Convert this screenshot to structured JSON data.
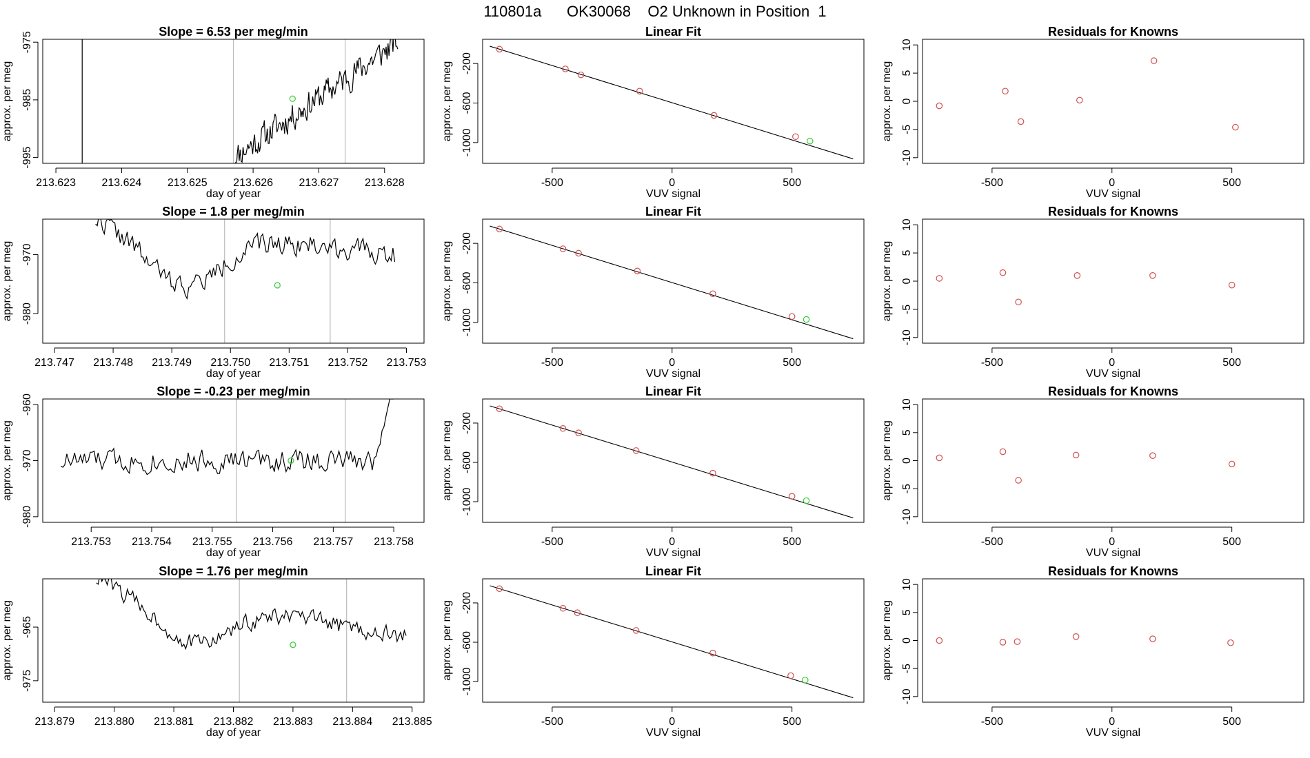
{
  "figure_title": "110801a      OK30068    O2 Unknown in Position  1",
  "colors": {
    "line": "#000000",
    "known_point": "#d05050",
    "unknown_point": "#33cc33",
    "marker_line": "#bbbbbb",
    "fit_line": "#000000"
  },
  "chart_data": [
    {
      "panel": "row1-timeseries",
      "type": "line",
      "title": "Slope =  6.53  per meg/min",
      "xlabel": "day of year",
      "ylabel": "approx. per meg",
      "xlim": [
        213.6228,
        213.6286
      ],
      "ylim": [
        -996,
        -974.5
      ],
      "xticks": [
        "213.623",
        "213.624",
        "213.625",
        "213.626",
        "213.627",
        "213.628"
      ],
      "yticks": [
        "-975",
        "-985",
        "-995"
      ],
      "vlines_gray": [
        213.6257,
        213.6274
      ],
      "vline_black": 213.6234,
      "trace_start": 213.6257,
      "trace_end": 213.6282,
      "trace_y_start": -995,
      "trace_y_end": -975,
      "noise": 3.0,
      "seed": 11,
      "marker": {
        "x": 213.6266,
        "y": -984.8
      }
    },
    {
      "panel": "row1-fit",
      "type": "scatter",
      "title": "Linear Fit",
      "xlabel": "VUV signal",
      "ylabel": "approx. per meg",
      "xlim": [
        -790,
        800
      ],
      "ylim": [
        -1210,
        45
      ],
      "xticks": [
        "-500",
        "0",
        "500"
      ],
      "yticks": [
        "-200",
        "-600",
        "-1000"
      ],
      "fit_line": {
        "x1": -760,
        "y1": -25,
        "x2": 755,
        "y2": -1165
      },
      "known": [
        [
          -720,
          -55
        ],
        [
          -445,
          -255
        ],
        [
          -380,
          -315
        ],
        [
          -135,
          -480
        ],
        [
          175,
          -725
        ],
        [
          515,
          -940
        ]
      ],
      "unknown": [
        [
          575,
          -985
        ]
      ]
    },
    {
      "panel": "row1-residuals",
      "type": "scatter",
      "title": "Residuals for Knowns",
      "xlabel": "VUV signal",
      "ylabel": "approx. per meg",
      "xlim": [
        -790,
        800
      ],
      "ylim": [
        -11,
        11
      ],
      "xticks": [
        "-500",
        "0",
        "500"
      ],
      "yticks": [
        "10",
        "5",
        "0",
        "-5",
        "-10"
      ],
      "points": [
        [
          -720,
          -0.8
        ],
        [
          -445,
          1.8
        ],
        [
          -380,
          -3.6
        ],
        [
          -135,
          0.2
        ],
        [
          175,
          7.2
        ],
        [
          515,
          -4.6
        ]
      ]
    },
    {
      "panel": "row2-timeseries",
      "type": "line",
      "title": "Slope =  1.8  per meg/min",
      "xlabel": "day of year",
      "ylabel": "approx. per meg",
      "xlim": [
        213.7468,
        213.7533
      ],
      "ylim": [
        -985,
        -964
      ],
      "xticks": [
        "213.747",
        "213.748",
        "213.749",
        "213.750",
        "213.751",
        "213.752",
        "213.753"
      ],
      "yticks": [
        "-970",
        "-980"
      ],
      "vlines_gray": [
        213.7499,
        213.7517
      ],
      "vline_black": null,
      "trace_start": 213.7477,
      "trace_end": 213.7528,
      "trace_y_start": -964,
      "trace_y_end": -970,
      "dip": {
        "center": 213.7492,
        "width": 0.0009,
        "depth": -9.5
      },
      "noise": 2.2,
      "seed": 22,
      "marker": {
        "x": 213.7508,
        "y": -975.2
      }
    },
    {
      "panel": "row2-fit",
      "type": "scatter",
      "title": "Linear Fit",
      "xlabel": "VUV signal",
      "ylabel": "approx. per meg",
      "xlim": [
        -790,
        800
      ],
      "ylim": [
        -1210,
        45
      ],
      "xticks": [
        "-500",
        "0",
        "500"
      ],
      "yticks": [
        "-200",
        "-600",
        "-1000"
      ],
      "fit_line": {
        "x1": -760,
        "y1": -25,
        "x2": 755,
        "y2": -1165
      },
      "known": [
        [
          -720,
          -55
        ],
        [
          -455,
          -255
        ],
        [
          -390,
          -300
        ],
        [
          -145,
          -480
        ],
        [
          170,
          -710
        ],
        [
          500,
          -940
        ]
      ],
      "unknown": [
        [
          560,
          -970
        ]
      ]
    },
    {
      "panel": "row2-residuals",
      "type": "scatter",
      "title": "Residuals for Knowns",
      "xlabel": "VUV signal",
      "ylabel": "approx. per meg",
      "xlim": [
        -790,
        800
      ],
      "ylim": [
        -11,
        11
      ],
      "xticks": [
        "-500",
        "0",
        "500"
      ],
      "yticks": [
        "10",
        "5",
        "0",
        "-5",
        "-10"
      ],
      "points": [
        [
          -720,
          0.5
        ],
        [
          -455,
          1.5
        ],
        [
          -390,
          -3.7
        ],
        [
          -145,
          1.0
        ],
        [
          170,
          1.0
        ],
        [
          500,
          -0.7
        ]
      ]
    },
    {
      "panel": "row3-timeseries",
      "type": "line",
      "title": "Slope =  -0.23  per meg/min",
      "xlabel": "day of year",
      "ylabel": "approx. per meg",
      "xlim": [
        213.7522,
        213.7585
      ],
      "ylim": [
        -981,
        -959
      ],
      "xticks": [
        "213.753",
        "213.754",
        "213.755",
        "213.756",
        "213.757",
        "213.758"
      ],
      "yticks": [
        "-960",
        "-970",
        "-980"
      ],
      "vlines_gray": [
        213.7554,
        213.7572
      ],
      "vline_black": null,
      "trace_start": 213.7525,
      "trace_end": 213.758,
      "trace_y_start": -970,
      "trace_y_end": -970,
      "end_spike": {
        "start": 213.7577,
        "to": -959
      },
      "noise": 2.5,
      "seed": 33,
      "marker": {
        "x": 213.7563,
        "y": -970.0
      }
    },
    {
      "panel": "row3-fit",
      "type": "scatter",
      "title": "Linear Fit",
      "xlabel": "VUV signal",
      "ylabel": "approx. per meg",
      "xlim": [
        -790,
        800
      ],
      "ylim": [
        -1210,
        45
      ],
      "xticks": [
        "-500",
        "0",
        "500"
      ],
      "yticks": [
        "-200",
        "-600",
        "-1000"
      ],
      "fit_line": {
        "x1": -760,
        "y1": -25,
        "x2": 755,
        "y2": -1165
      },
      "known": [
        [
          -720,
          -55
        ],
        [
          -455,
          -255
        ],
        [
          -390,
          -300
        ],
        [
          -150,
          -480
        ],
        [
          170,
          -710
        ],
        [
          500,
          -945
        ]
      ],
      "unknown": [
        [
          560,
          -990
        ]
      ]
    },
    {
      "panel": "row3-residuals",
      "type": "scatter",
      "title": "Residuals for Knowns",
      "xlabel": "VUV signal",
      "ylabel": "approx. per meg",
      "xlim": [
        -790,
        800
      ],
      "ylim": [
        -11,
        11
      ],
      "xticks": [
        "-500",
        "0",
        "500"
      ],
      "yticks": [
        "10",
        "5",
        "0",
        "-5",
        "-10"
      ],
      "points": [
        [
          -720,
          0.5
        ],
        [
          -455,
          1.6
        ],
        [
          -390,
          -3.5
        ],
        [
          -150,
          1.0
        ],
        [
          170,
          0.9
        ],
        [
          500,
          -0.6
        ]
      ]
    },
    {
      "panel": "row4-timeseries",
      "type": "line",
      "title": "Slope =  1.76  per meg/min",
      "xlabel": "day of year",
      "ylabel": "approx. per meg",
      "xlim": [
        213.8788,
        213.8852
      ],
      "ylim": [
        -979,
        -956
      ],
      "xticks": [
        "213.879",
        "213.880",
        "213.881",
        "213.882",
        "213.883",
        "213.884",
        "213.885"
      ],
      "yticks": [
        "-965",
        "-975"
      ],
      "vlines_gray": [
        213.8821,
        213.8839
      ],
      "vline_black": null,
      "trace_start": 213.8797,
      "trace_end": 213.8849,
      "trace_y_start": -956,
      "trace_y_end": -967,
      "dip": {
        "center": 213.8813,
        "width": 0.0009,
        "depth": -8.5
      },
      "noise": 2.0,
      "seed": 44,
      "marker": {
        "x": 213.883,
        "y": -968.3
      }
    },
    {
      "panel": "row4-fit",
      "type": "scatter",
      "title": "Linear Fit",
      "xlabel": "VUV signal",
      "ylabel": "approx. per meg",
      "xlim": [
        -790,
        800
      ],
      "ylim": [
        -1210,
        45
      ],
      "xticks": [
        "-500",
        "0",
        "500"
      ],
      "yticks": [
        "-200",
        "-600",
        "-1000"
      ],
      "fit_line": {
        "x1": -760,
        "y1": -25,
        "x2": 755,
        "y2": -1165
      },
      "known": [
        [
          -720,
          -55
        ],
        [
          -455,
          -255
        ],
        [
          -395,
          -300
        ],
        [
          -150,
          -480
        ],
        [
          170,
          -710
        ],
        [
          495,
          -940
        ]
      ],
      "unknown": [
        [
          555,
          -985
        ]
      ]
    },
    {
      "panel": "row4-residuals",
      "type": "scatter",
      "title": "Residuals for Knowns",
      "xlabel": "VUV signal",
      "ylabel": "approx. per meg",
      "xlim": [
        -790,
        800
      ],
      "ylim": [
        -11,
        11
      ],
      "xticks": [
        "-500",
        "0",
        "500"
      ],
      "yticks": [
        "10",
        "5",
        "0",
        "-5",
        "-10"
      ],
      "points": [
        [
          -720,
          0.0
        ],
        [
          -455,
          -0.3
        ],
        [
          -395,
          -0.2
        ],
        [
          -150,
          0.7
        ],
        [
          170,
          0.3
        ],
        [
          495,
          -0.4
        ]
      ]
    }
  ]
}
